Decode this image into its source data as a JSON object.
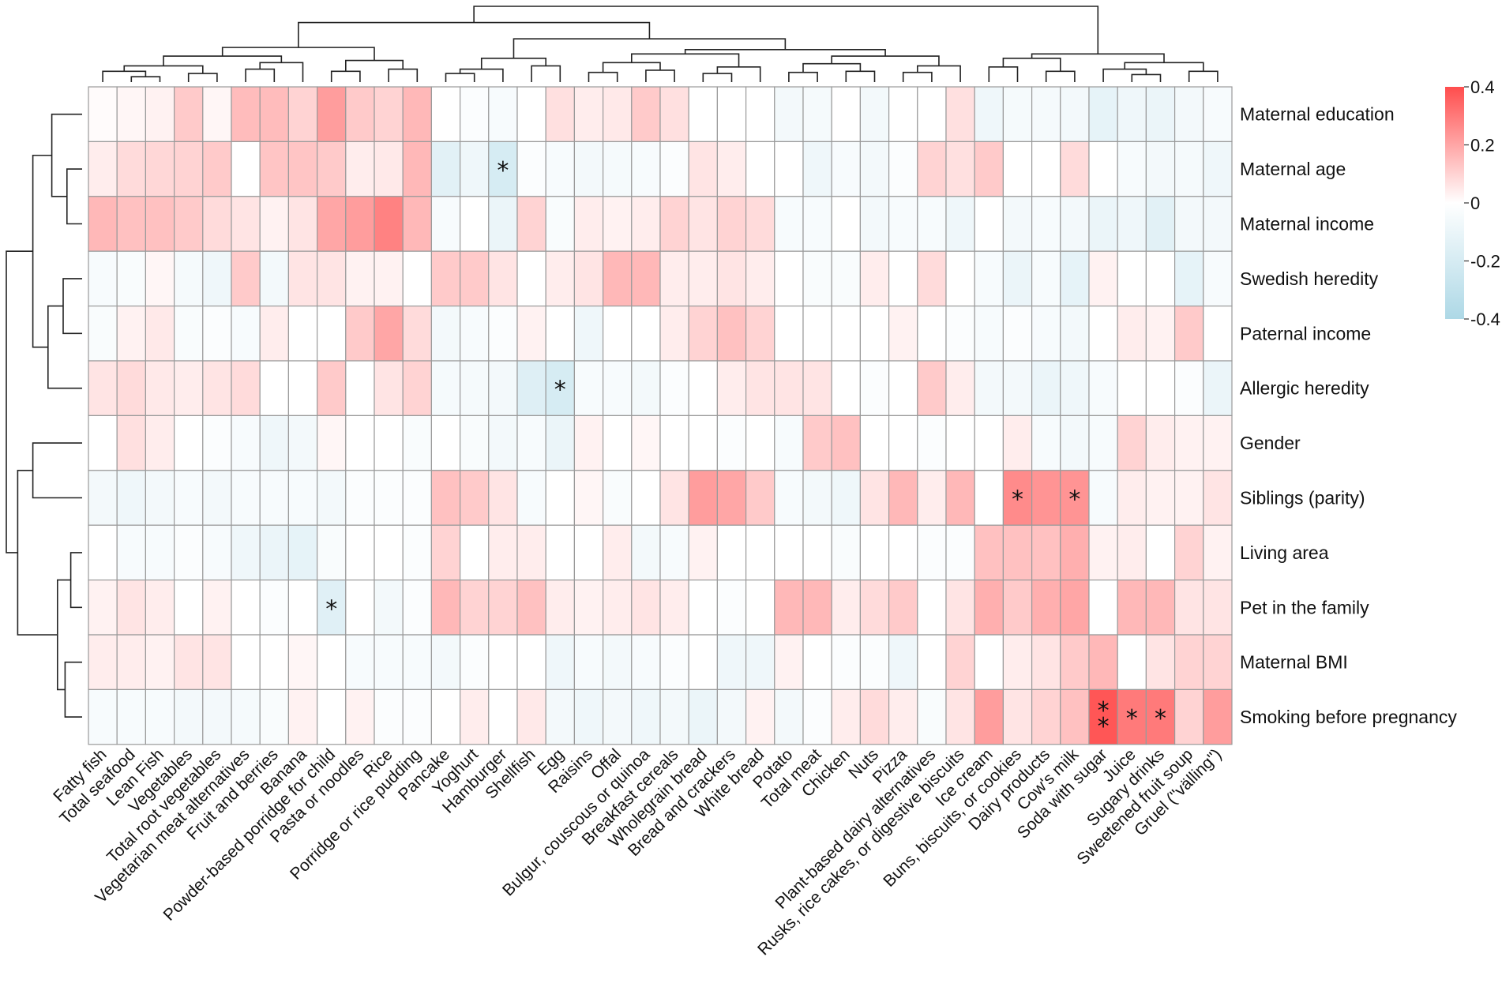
{
  "chart_data": {
    "type": "heatmap",
    "title": "",
    "rows": [
      "Maternal education",
      "Maternal age",
      "Maternal income",
      "Swedish heredity",
      "Paternal income",
      "Allergic heredity",
      "Gender",
      "Siblings (parity)",
      "Living area",
      "Pet in the family",
      "Maternal BMI",
      "Smoking before pregnancy"
    ],
    "columns": [
      "Fatty fish",
      "Total seafood",
      "Lean Fish",
      "Vegetables",
      "Total root vegetables",
      "Vegetarian meat alternatives",
      "Fruit and berries",
      "Banana",
      "Powder-based porridge for child",
      "Pasta or noodles",
      "Rice",
      "Porridge or rice pudding",
      "Pancake",
      "Yoghurt",
      "Hamburger",
      "Shellfish",
      "Egg",
      "Raisins",
      "Offal",
      "Bulgur, couscous or quinoa",
      "Breakfast cereals",
      "Wholegrain bread",
      "Bread and crackers",
      "White bread",
      "Potato",
      "Total meat",
      "Chicken",
      "Nuts",
      "Pizza",
      "Plant-based dairy alternatives",
      "Rusks, rice cakes, or digestive biscuits",
      "Ice cream",
      "Buns, biscuits, or cookies",
      "Dairy products",
      "Cow's milk",
      "Soda with sugar",
      "Juice",
      "Sugary drinks",
      "Sweetened fruit soup",
      "Gruel (\"välling\")"
    ],
    "values": [
      [
        0.01,
        0.02,
        0.03,
        0.12,
        0.02,
        0.15,
        0.15,
        0.1,
        0.22,
        0.12,
        0.1,
        0.16,
        0.0,
        -0.02,
        -0.04,
        0.0,
        0.07,
        0.04,
        0.05,
        0.12,
        0.07,
        0.0,
        0.0,
        0.0,
        -0.06,
        -0.05,
        0.0,
        -0.06,
        0.0,
        0.0,
        0.07,
        -0.08,
        -0.05,
        -0.05,
        -0.06,
        -0.12,
        -0.08,
        -0.1,
        -0.06,
        -0.04
      ],
      [
        0.04,
        0.08,
        0.09,
        0.1,
        0.12,
        0.0,
        0.13,
        0.13,
        0.12,
        0.04,
        0.05,
        0.16,
        -0.14,
        -0.08,
        -0.2,
        -0.02,
        -0.04,
        -0.06,
        -0.05,
        -0.04,
        -0.02,
        0.06,
        0.04,
        0.0,
        0.0,
        -0.08,
        -0.04,
        -0.06,
        -0.02,
        0.1,
        0.07,
        0.12,
        0.0,
        0.0,
        0.08,
        0.0,
        -0.04,
        -0.06,
        -0.05,
        -0.08
      ],
      [
        0.16,
        0.14,
        0.14,
        0.12,
        0.08,
        0.06,
        0.03,
        0.06,
        0.2,
        0.22,
        0.28,
        0.16,
        -0.04,
        0.0,
        -0.1,
        0.1,
        -0.03,
        0.04,
        0.03,
        0.04,
        0.1,
        0.06,
        0.1,
        0.08,
        -0.04,
        -0.04,
        0.0,
        -0.06,
        -0.04,
        -0.04,
        -0.08,
        0.0,
        -0.06,
        -0.04,
        -0.06,
        -0.1,
        -0.08,
        -0.14,
        -0.06,
        -0.06
      ],
      [
        -0.04,
        -0.03,
        0.02,
        -0.05,
        -0.08,
        0.12,
        -0.06,
        0.06,
        0.06,
        0.03,
        0.03,
        0.0,
        0.12,
        0.12,
        0.06,
        0.0,
        0.04,
        0.06,
        0.16,
        0.16,
        0.04,
        0.04,
        0.06,
        0.04,
        0.0,
        -0.03,
        -0.03,
        0.04,
        0.0,
        0.08,
        0.0,
        -0.04,
        -0.1,
        -0.04,
        -0.12,
        0.03,
        0.0,
        0.0,
        -0.12,
        -0.04
      ],
      [
        -0.03,
        0.03,
        0.05,
        -0.03,
        -0.02,
        -0.04,
        0.04,
        0.0,
        0.0,
        0.12,
        0.2,
        0.08,
        -0.06,
        -0.04,
        -0.02,
        0.03,
        0.0,
        -0.08,
        0.0,
        0.0,
        0.04,
        0.1,
        0.14,
        0.1,
        0.0,
        0.0,
        0.0,
        0.0,
        0.03,
        0.0,
        -0.02,
        -0.04,
        -0.02,
        -0.04,
        -0.06,
        0.0,
        0.04,
        0.03,
        0.12,
        0.0
      ],
      [
        0.06,
        0.08,
        0.05,
        0.04,
        0.06,
        0.08,
        0.0,
        0.0,
        0.12,
        0.0,
        0.06,
        0.1,
        -0.05,
        -0.05,
        -0.06,
        -0.16,
        -0.2,
        -0.04,
        -0.04,
        -0.06,
        -0.02,
        0.0,
        0.04,
        0.06,
        0.06,
        0.06,
        0.0,
        -0.02,
        0.0,
        0.12,
        0.04,
        -0.06,
        -0.06,
        -0.1,
        -0.08,
        -0.04,
        0.0,
        0.0,
        -0.02,
        -0.1
      ],
      [
        0.0,
        0.07,
        0.04,
        0.0,
        -0.02,
        -0.04,
        -0.08,
        -0.06,
        0.02,
        0.0,
        0.0,
        -0.03,
        0.0,
        -0.03,
        -0.06,
        -0.04,
        -0.1,
        0.03,
        0.0,
        0.02,
        0.0,
        0.0,
        -0.02,
        0.0,
        -0.04,
        0.12,
        0.14,
        0.0,
        0.0,
        -0.02,
        0.0,
        0.0,
        0.04,
        -0.04,
        -0.06,
        -0.04,
        0.1,
        0.04,
        0.03,
        0.03
      ],
      [
        -0.06,
        -0.08,
        -0.06,
        -0.04,
        -0.06,
        -0.04,
        -0.04,
        -0.04,
        -0.06,
        -0.02,
        -0.02,
        -0.02,
        0.14,
        0.12,
        0.06,
        -0.04,
        0.0,
        0.02,
        -0.03,
        0.0,
        0.06,
        0.22,
        0.2,
        0.12,
        -0.04,
        -0.06,
        -0.08,
        0.06,
        0.16,
        0.04,
        0.16,
        0.0,
        0.26,
        0.24,
        0.24,
        -0.04,
        0.04,
        0.03,
        0.03,
        0.06
      ],
      [
        0.0,
        -0.04,
        -0.04,
        -0.02,
        -0.04,
        -0.08,
        -0.1,
        -0.12,
        -0.03,
        0.0,
        0.0,
        -0.02,
        0.1,
        0.0,
        0.04,
        0.04,
        0.0,
        0.0,
        0.04,
        -0.06,
        -0.04,
        0.03,
        0.0,
        0.0,
        0.0,
        0.0,
        -0.03,
        0.0,
        0.0,
        -0.02,
        -0.02,
        0.14,
        0.14,
        0.14,
        0.18,
        0.03,
        0.04,
        0.0,
        0.1,
        0.03
      ],
      [
        0.03,
        0.06,
        0.04,
        0.0,
        0.03,
        0.0,
        -0.02,
        0.0,
        -0.15,
        0.0,
        -0.06,
        -0.02,
        0.16,
        0.1,
        0.1,
        0.14,
        0.04,
        0.03,
        0.04,
        0.06,
        0.04,
        0.0,
        -0.02,
        0.0,
        0.16,
        0.16,
        0.04,
        0.08,
        0.12,
        0.0,
        0.06,
        0.18,
        0.12,
        0.18,
        0.2,
        0.0,
        0.16,
        0.16,
        0.06,
        0.06
      ],
      [
        0.04,
        0.04,
        0.03,
        0.06,
        0.06,
        0.0,
        0.0,
        0.02,
        0.0,
        -0.04,
        -0.04,
        -0.04,
        -0.06,
        -0.02,
        0.0,
        0.0,
        -0.08,
        -0.04,
        -0.06,
        -0.04,
        -0.02,
        0.0,
        -0.08,
        -0.08,
        0.03,
        0.0,
        -0.02,
        -0.02,
        -0.08,
        0.0,
        0.1,
        0.0,
        0.04,
        0.06,
        0.12,
        0.16,
        0.0,
        0.06,
        0.1,
        0.1
      ],
      [
        -0.04,
        -0.04,
        -0.04,
        -0.06,
        -0.06,
        -0.05,
        -0.03,
        0.03,
        0.0,
        0.03,
        -0.02,
        -0.02,
        0.0,
        0.04,
        0.0,
        0.05,
        -0.06,
        -0.08,
        -0.06,
        -0.08,
        -0.06,
        -0.1,
        -0.06,
        0.03,
        -0.06,
        -0.02,
        0.04,
        0.08,
        0.04,
        -0.03,
        0.06,
        0.22,
        0.06,
        0.1,
        0.14,
        0.38,
        0.3,
        0.3,
        0.1,
        0.22
      ]
    ],
    "significance": [
      {
        "row": "Maternal age",
        "column": "Hamburger",
        "mark": "*"
      },
      {
        "row": "Allergic heredity",
        "column": "Egg",
        "mark": "*"
      },
      {
        "row": "Siblings (parity)",
        "column": "Buns, biscuits, or cookies",
        "mark": "*"
      },
      {
        "row": "Siblings (parity)",
        "column": "Cow's milk",
        "mark": "*"
      },
      {
        "row": "Pet in the family",
        "column": "Powder-based porridge for child",
        "mark": "*"
      },
      {
        "row": "Smoking before pregnancy",
        "column": "Soda with sugar",
        "mark": "**"
      },
      {
        "row": "Smoking before pregnancy",
        "column": "Juice",
        "mark": "*"
      },
      {
        "row": "Smoking before pregnancy",
        "column": "Sugary drinks",
        "mark": "*"
      }
    ],
    "colorscale": {
      "min": -0.4,
      "max": 0.4,
      "low_color": "#add8e6",
      "mid_color": "#ffffff",
      "high_color": "#ff4d4d"
    },
    "legend": {
      "ticks": [
        "0.4",
        "0.2",
        "0",
        "-0.2",
        "-0.4"
      ],
      "placement": "right"
    },
    "row_dendrogram": true,
    "column_dendrogram": true
  }
}
